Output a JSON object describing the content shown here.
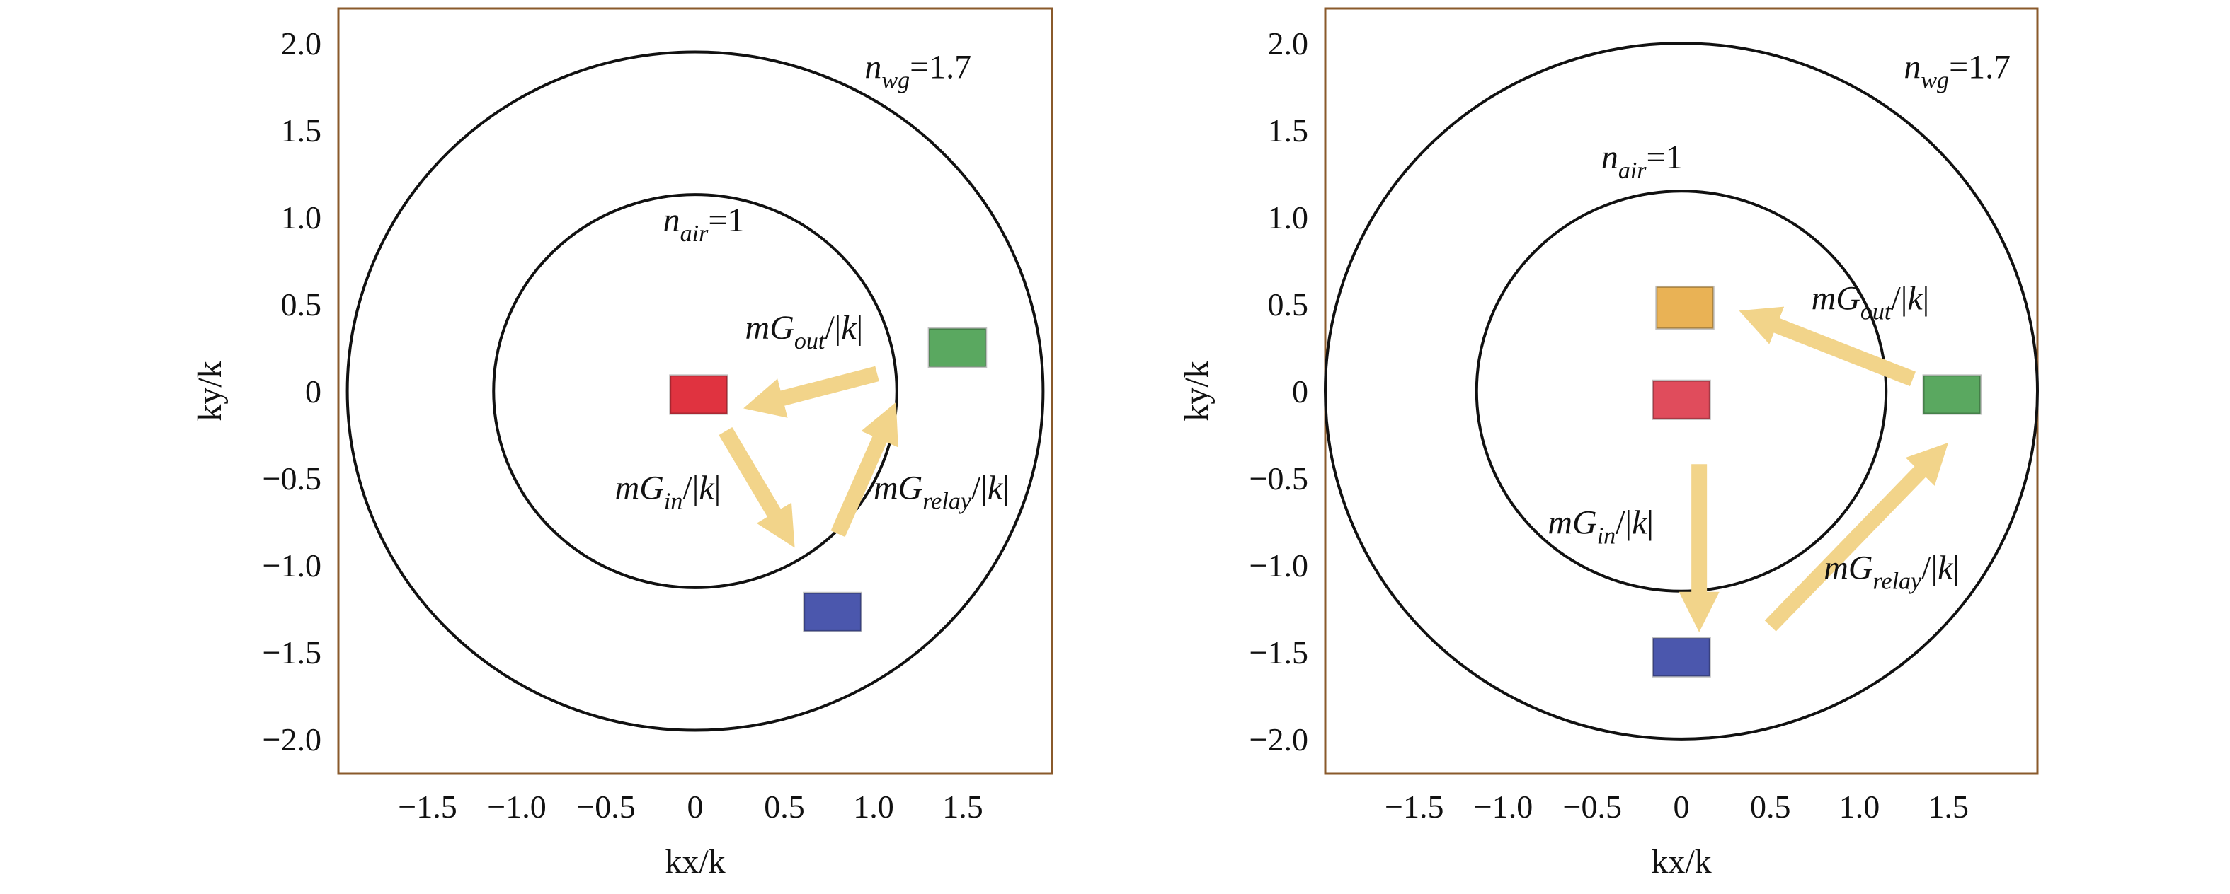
{
  "chart_data": [
    {
      "type": "scatter",
      "xlabel": "kx/k",
      "ylabel": "ky/k",
      "xlim": [
        -2.0,
        2.0
      ],
      "ylim": [
        -2.2,
        2.2
      ],
      "xticks": [
        {
          "value": -1.5,
          "label": "−1.5"
        },
        {
          "value": -1.0,
          "label": "−1.0"
        },
        {
          "value": -0.5,
          "label": "−0.5"
        },
        {
          "value": 0,
          "label": "0"
        },
        {
          "value": 0.5,
          "label": "0.5"
        },
        {
          "value": 1.0,
          "label": "1.0"
        },
        {
          "value": 1.5,
          "label": "1.5"
        }
      ],
      "yticks": [
        {
          "value": 2.0,
          "label": "2.0"
        },
        {
          "value": 1.5,
          "label": "1.5"
        },
        {
          "value": 1.0,
          "label": "1.0"
        },
        {
          "value": 0.5,
          "label": "0.5"
        },
        {
          "value": 0,
          "label": "0"
        },
        {
          "value": -0.5,
          "label": "−0.5"
        },
        {
          "value": -1.0,
          "label": "−1.0"
        },
        {
          "value": -1.5,
          "label": "−1.5"
        },
        {
          "value": -2.0,
          "label": "−2.0"
        }
      ],
      "grid": false,
      "circles": [
        {
          "label": "n_wg=1.7",
          "radius": 1.95,
          "label_at": [
            0.95,
            1.8
          ],
          "text_main": "n",
          "text_sub": "wg",
          "text_rest": "=1.7"
        },
        {
          "label": "n_air=1",
          "radius": 1.13,
          "label_at": [
            -0.18,
            0.92
          ],
          "text_main": "n",
          "text_sub": "air",
          "text_rest": "=1"
        }
      ],
      "markers": [
        {
          "color": "#e03340",
          "x": 0.02,
          "y": -0.02,
          "w": 0.32,
          "h": 0.22
        },
        {
          "color": "#5aa860",
          "x": 1.47,
          "y": 0.25,
          "w": 0.32,
          "h": 0.22
        },
        {
          "color": "#4b57ad",
          "x": 0.77,
          "y": -1.27,
          "w": 0.32,
          "h": 0.22
        }
      ],
      "arrows": [
        {
          "from": [
            1.02,
            0.1
          ],
          "to": [
            0.38,
            -0.07
          ],
          "label_main": "mG",
          "label_sub": "out",
          "label_rest": "/|k|",
          "label_at": [
            0.28,
            0.3
          ]
        },
        {
          "from": [
            0.17,
            -0.23
          ],
          "to": [
            0.5,
            -0.8
          ],
          "label_main": "mG",
          "label_sub": "in",
          "label_rest": "/|k|",
          "label_at": [
            -0.45,
            -0.62
          ]
        },
        {
          "from": [
            0.8,
            -0.82
          ],
          "to": [
            1.08,
            -0.17
          ],
          "label_main": "mG",
          "label_sub": "relay",
          "label_rest": "/|k|",
          "label_at": [
            1.0,
            -0.62
          ]
        }
      ]
    },
    {
      "type": "scatter",
      "xlabel": "kx/k",
      "ylabel": "ky/k",
      "xlim": [
        -2.0,
        2.0
      ],
      "ylim": [
        -2.2,
        2.2
      ],
      "xticks": [
        {
          "value": -1.5,
          "label": "−1.5"
        },
        {
          "value": -1.0,
          "label": "−1.0"
        },
        {
          "value": -0.5,
          "label": "−0.5"
        },
        {
          "value": 0,
          "label": "0"
        },
        {
          "value": 0.5,
          "label": "0.5"
        },
        {
          "value": 1.0,
          "label": "1.0"
        },
        {
          "value": 1.5,
          "label": "1.5"
        }
      ],
      "yticks": [
        {
          "value": 2.0,
          "label": "2.0"
        },
        {
          "value": 1.5,
          "label": "1.5"
        },
        {
          "value": 1.0,
          "label": "1.0"
        },
        {
          "value": 0.5,
          "label": "0.5"
        },
        {
          "value": 0,
          "label": "0"
        },
        {
          "value": -0.5,
          "label": "−0.5"
        },
        {
          "value": -1.0,
          "label": "−1.0"
        },
        {
          "value": -1.5,
          "label": "−1.5"
        },
        {
          "value": -2.0,
          "label": "−2.0"
        }
      ],
      "grid": false,
      "circles": [
        {
          "label": "n_wg=1.7",
          "radius": 2.0,
          "label_at": [
            1.25,
            1.8
          ],
          "text_main": "n",
          "text_sub": "wg",
          "text_rest": "=1.7"
        },
        {
          "label": "n_air=1",
          "radius": 1.15,
          "label_at": [
            -0.45,
            1.28
          ],
          "text_main": "n",
          "text_sub": "air",
          "text_rest": "=1"
        }
      ],
      "markers": [
        {
          "color": "#e9b255",
          "x": 0.02,
          "y": 0.48,
          "w": 0.32,
          "h": 0.24
        },
        {
          "color": "#e04c5c",
          "x": 0.0,
          "y": -0.05,
          "w": 0.32,
          "h": 0.22
        },
        {
          "color": "#5aa860",
          "x": 1.52,
          "y": -0.02,
          "w": 0.32,
          "h": 0.22
        },
        {
          "color": "#4b57ad",
          "x": 0.0,
          "y": -1.53,
          "w": 0.32,
          "h": 0.22
        }
      ],
      "arrows": [
        {
          "from": [
            1.3,
            0.07
          ],
          "to": [
            0.43,
            0.42
          ],
          "label_main": "mG",
          "label_sub": "out",
          "label_rest": "/|k|",
          "label_at": [
            0.73,
            0.47
          ]
        },
        {
          "from": [
            0.1,
            -0.42
          ],
          "to": [
            0.1,
            -1.27
          ],
          "label_main": "mG",
          "label_sub": "in",
          "label_rest": "/|k|",
          "label_at": [
            -0.75,
            -0.82
          ]
        },
        {
          "from": [
            0.5,
            -1.35
          ],
          "to": [
            1.42,
            -0.38
          ],
          "label_main": "mG",
          "label_sub": "relay",
          "label_rest": "/|k|",
          "label_at": [
            0.8,
            -1.08
          ]
        }
      ]
    }
  ]
}
